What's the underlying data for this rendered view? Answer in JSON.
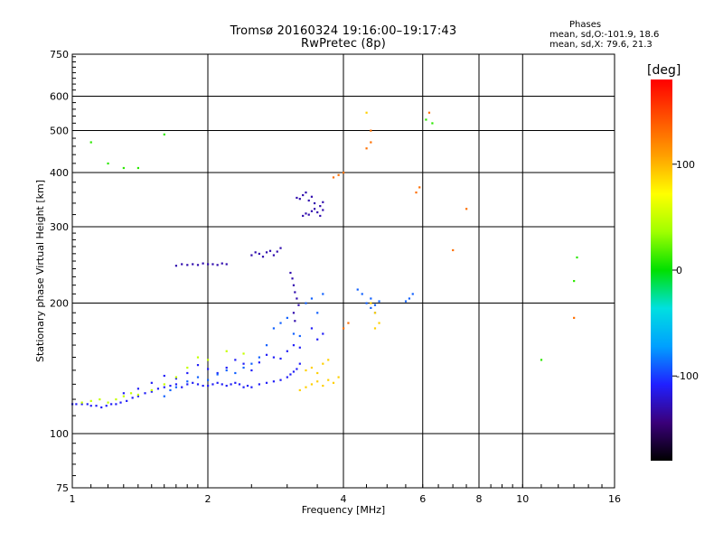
{
  "header": {
    "title_line1": "Tromsø 20160324 19:16:00–19:17:43",
    "title_line2": "RwPretec (8p)",
    "stats_title": "Phases",
    "stats_o": "mean, sd,O:-101.9, 18.6",
    "stats_x": "mean, sd,X:  79.6, 21.3"
  },
  "colors": {
    "grid": "#000000",
    "background": "#ffffff",
    "colorbar_stops": [
      "#000000",
      "#3a007a",
      "#2020ff",
      "#00a0ff",
      "#00e0e0",
      "#00e000",
      "#a0ff00",
      "#ffff00",
      "#ffa000",
      "#ff5000",
      "#ff0000"
    ]
  },
  "chart_data": {
    "type": "scatter",
    "title": "Tromsø 20160324 19:16:00–19:17:43",
    "subtitle": "RwPretec (8p)",
    "xlabel": "Frequency [MHz]",
    "ylabel": "Stationary phase Virtual Height [km]",
    "x_scale": "log",
    "y_scale": "log",
    "xlim": [
      1,
      16
    ],
    "ylim": [
      75,
      750
    ],
    "x_ticks": [
      1,
      2,
      4,
      6,
      8,
      10,
      16
    ],
    "x_tick_labels": [
      "1",
      "2",
      "4",
      "6",
      "8",
      "10",
      "16"
    ],
    "y_ticks": [
      75,
      100,
      200,
      300,
      400,
      500,
      600,
      750
    ],
    "y_tick_labels": [
      "75",
      "100",
      "200",
      "300",
      "400",
      "500",
      "600",
      "750"
    ],
    "grid": true,
    "colorbar": {
      "label": "[deg]",
      "range": [
        -180,
        180
      ],
      "ticks": [
        100,
        0,
        -100
      ],
      "tick_labels": [
        "100",
        "0",
        "-100"
      ]
    },
    "series": [
      {
        "color_value": -110,
        "x": [
          1.0,
          1.02,
          1.05,
          1.08,
          1.1,
          1.13,
          1.16,
          1.19,
          1.22,
          1.25,
          1.28,
          1.32,
          1.36,
          1.4,
          1.45,
          1.5,
          1.55,
          1.6,
          1.65,
          1.7,
          1.75,
          1.8,
          1.85,
          1.9,
          1.95,
          2.0,
          2.05,
          2.1,
          2.15,
          2.2,
          2.25,
          2.3,
          2.35,
          2.4,
          2.45,
          2.5,
          2.6,
          2.7,
          2.8,
          2.9,
          3.0,
          3.05,
          3.1,
          3.15,
          3.2,
          1.3,
          1.4,
          1.5,
          1.6,
          1.7,
          1.8,
          1.9,
          2.0,
          2.1,
          2.2,
          2.3,
          2.4,
          2.5,
          2.6,
          2.7,
          2.8,
          2.9,
          3.0,
          3.1,
          3.2,
          3.4,
          3.5,
          3.6
        ],
        "y": [
          117,
          117,
          117,
          117,
          116,
          116,
          115,
          116,
          117,
          117,
          118,
          119,
          121,
          122,
          124,
          125,
          127,
          128,
          129,
          130,
          128,
          130,
          131,
          130,
          129,
          129,
          130,
          131,
          130,
          129,
          130,
          131,
          130,
          128,
          129,
          128,
          130,
          131,
          132,
          133,
          135,
          137,
          139,
          141,
          145,
          124,
          127,
          131,
          136,
          134,
          138,
          144,
          141,
          138,
          142,
          148,
          145,
          140,
          146,
          152,
          150,
          149,
          155,
          160,
          158,
          175,
          165,
          170
        ]
      },
      {
        "color_value": -130,
        "x": [
          1.7,
          1.75,
          1.8,
          1.85,
          1.9,
          1.95,
          2.0,
          2.05,
          2.1,
          2.15,
          2.2,
          2.5,
          2.55,
          2.6,
          2.65,
          2.7,
          2.75,
          2.8,
          2.85,
          2.9,
          3.25,
          3.3,
          3.35,
          3.4,
          3.45,
          3.5,
          3.55,
          3.6,
          3.15,
          3.2,
          3.25,
          3.3,
          3.35,
          3.4,
          3.45,
          3.55,
          3.6,
          3.05,
          3.08,
          3.1,
          3.12,
          3.15,
          3.18,
          3.1,
          3.12
        ],
        "y": [
          244,
          246,
          245,
          246,
          245,
          247,
          246,
          246,
          245,
          247,
          246,
          258,
          262,
          260,
          256,
          262,
          264,
          258,
          263,
          268,
          318,
          322,
          320,
          326,
          330,
          324,
          318,
          328,
          350,
          348,
          355,
          360,
          345,
          352,
          340,
          335,
          342,
          235,
          228,
          220,
          212,
          205,
          198,
          190,
          182
        ]
      },
      {
        "color_value": -90,
        "x": [
          1.6,
          1.65,
          1.7,
          1.8,
          1.9,
          2.0,
          2.1,
          2.2,
          2.3,
          2.4,
          2.5,
          2.6,
          2.7,
          2.8,
          2.9,
          3.0,
          3.1,
          3.2,
          3.3,
          3.4,
          3.5,
          3.6,
          4.5,
          4.6,
          4.7,
          4.8,
          5.5,
          5.6,
          5.7,
          4.3,
          4.4,
          4.6,
          4.7
        ],
        "y": [
          122,
          126,
          128,
          132,
          135,
          133,
          137,
          140,
          138,
          142,
          145,
          150,
          160,
          175,
          180,
          185,
          170,
          168,
          200,
          205,
          190,
          210,
          200,
          205,
          198,
          202,
          202,
          205,
          210,
          215,
          210,
          195,
          190
        ]
      },
      {
        "color_value": 50,
        "x": [
          1.05,
          1.1,
          1.15,
          1.2,
          1.25,
          1.3,
          1.35,
          1.4,
          1.5,
          1.6,
          1.7,
          1.8,
          1.9,
          2.0,
          2.2,
          2.4
        ],
        "y": [
          118,
          119,
          120,
          118,
          120,
          122,
          124,
          123,
          126,
          130,
          135,
          142,
          150,
          148,
          155,
          153
        ]
      },
      {
        "color_value": 90,
        "x": [
          3.2,
          3.3,
          3.4,
          3.5,
          3.6,
          3.7,
          3.8,
          3.9,
          3.3,
          3.4,
          3.5,
          3.6,
          3.7,
          4.7,
          4.8,
          4.6,
          4.7,
          4.5
        ],
        "y": [
          126,
          128,
          130,
          132,
          129,
          133,
          131,
          135,
          140,
          142,
          138,
          145,
          148,
          175,
          180,
          200,
          190,
          550
        ]
      },
      {
        "color_value": 130,
        "x": [
          3.8,
          3.9,
          4.0,
          4.5,
          4.6,
          4.6,
          5.8,
          5.9,
          4.0,
          4.1,
          6.2,
          7.0,
          7.5,
          13.0
        ],
        "y": [
          390,
          395,
          400,
          455,
          470,
          500,
          360,
          370,
          175,
          180,
          550,
          265,
          330,
          185
        ]
      },
      {
        "color_value": 10,
        "x": [
          1.1,
          1.2,
          1.3,
          1.4,
          1.6,
          6.1,
          6.3,
          11.0,
          13.2,
          13.0
        ],
        "y": [
          470,
          420,
          410,
          410,
          490,
          530,
          520,
          148,
          255,
          225
        ]
      }
    ]
  }
}
